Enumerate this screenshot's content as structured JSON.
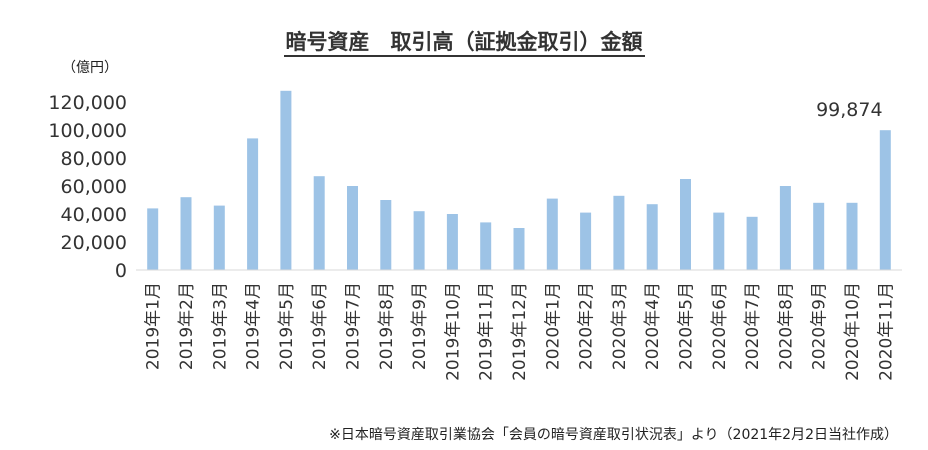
{
  "chart_title": "暗号資産　取引高（証拠金取引）金額",
  "unit": "（億円）",
  "source": "※日本暗号資産取引業協会「会員の暗号資産取引状況表」より（2021年2月2日当社作成）",
  "colors": {
    "bar": "#9DC3E6",
    "axis": "#D9D9D9",
    "text": "#333333"
  },
  "chart_data": {
    "type": "bar",
    "title": "暗号資産　取引高（証拠金取引）金額",
    "ylabel": "（億円）",
    "xlabel": "",
    "ylim": [
      0,
      120000
    ],
    "yticks": [
      "0",
      "20,000",
      "40,000",
      "60,000",
      "80,000",
      "100,000",
      "120,000"
    ],
    "categories": [
      "2019年1月",
      "2019年2月",
      "2019年3月",
      "2019年4月",
      "2019年5月",
      "2019年6月",
      "2019年7月",
      "2019年8月",
      "2019年9月",
      "2019年10月",
      "2019年11月",
      "2019年12月",
      "2020年1月",
      "2020年2月",
      "2020年3月",
      "2020年4月",
      "2020年5月",
      "2020年6月",
      "2020年7月",
      "2020年8月",
      "2020年9月",
      "2020年10月",
      "2020年11月"
    ],
    "values": [
      44000,
      52000,
      46000,
      94000,
      128000,
      67000,
      60000,
      50000,
      42000,
      40000,
      34000,
      30000,
      51000,
      41000,
      53000,
      47000,
      65000,
      41000,
      38000,
      60000,
      48000,
      48000,
      99874
    ],
    "annotations": [
      {
        "category": "2020年11月",
        "text": "99,874"
      }
    ],
    "grid": false,
    "legend": "none"
  }
}
